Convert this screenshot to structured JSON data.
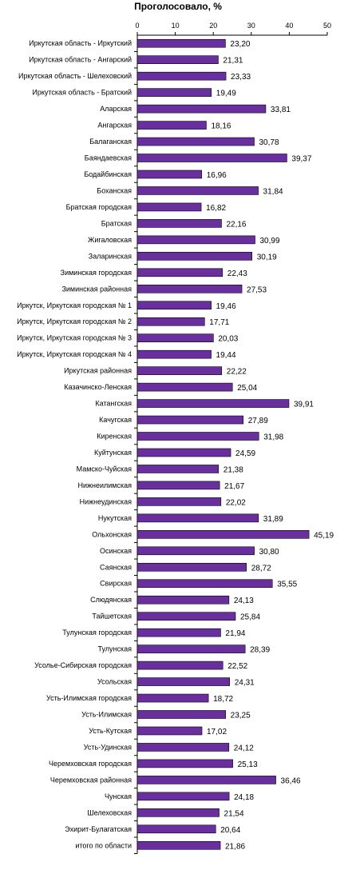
{
  "chart_data": {
    "type": "bar",
    "orientation": "horizontal",
    "title": "Проголосовало, %",
    "xlim": [
      0,
      50
    ],
    "x_ticks": [
      "0",
      "10",
      "20",
      "30",
      "40",
      "50"
    ],
    "grid": false,
    "bar_color": "#6a2f9e",
    "categories": [
      "Иркутская область - Иркутский",
      "Иркутская область - Ангарский",
      "Иркутская область - Шелеховский",
      "Иркутская область - Братский",
      "Аларская",
      "Ангарская",
      "Балаганская",
      "Баяндаевская",
      "Бодайбинская",
      "Боханская",
      "Братская городская",
      "Братская",
      "Жигаловская",
      "Заларинская",
      "Зиминская городская",
      "Зиминская районная",
      "Иркутск, Иркутская городская № 1",
      "Иркутск, Иркутская городская № 2",
      "Иркутск, Иркутская городская № 3",
      "Иркутск, Иркутская городская № 4",
      "Иркутская районная",
      "Казачинско-Ленская",
      "Катангская",
      "Качугская",
      "Киренская",
      "Куйтунская",
      "Мамско-Чуйская",
      "Нижнеилимская",
      "Нижнеудинская",
      "Нукутская",
      "Ольхонская",
      "Осинская",
      "Саянская",
      "Свирская",
      "Слюдянская",
      "Тайшетская",
      "Тулунская городская",
      "Тулунская",
      "Усолье-Сибирская городская",
      "Усольская",
      "Усть-Илимская городская",
      "Усть-Илимская",
      "Усть-Кутская",
      "Усть-Удинская",
      "Черемховская городская",
      "Черемховская районная",
      "Чунская",
      "Шелеховская",
      "Эхирит-Булагатская",
      "итого по области"
    ],
    "values": [
      23.2,
      21.31,
      23.33,
      19.49,
      33.81,
      18.16,
      30.78,
      39.37,
      16.96,
      31.84,
      16.82,
      22.16,
      30.99,
      30.19,
      22.43,
      27.53,
      19.46,
      17.71,
      20.03,
      19.44,
      22.22,
      25.04,
      39.91,
      27.89,
      31.98,
      24.59,
      21.38,
      21.67,
      22.02,
      31.89,
      45.19,
      30.8,
      28.72,
      35.55,
      24.13,
      25.84,
      21.94,
      28.39,
      22.52,
      24.31,
      18.72,
      23.25,
      17.02,
      24.12,
      25.13,
      36.46,
      24.18,
      21.54,
      20.64,
      21.86
    ],
    "value_labels": [
      "23,20",
      "21,31",
      "23,33",
      "19,49",
      "33,81",
      "18,16",
      "30,78",
      "39,37",
      "16,96",
      "31,84",
      "16,82",
      "22,16",
      "30,99",
      "30,19",
      "22,43",
      "27,53",
      "19,46",
      "17,71",
      "20,03",
      "19,44",
      "22,22",
      "25,04",
      "39,91",
      "27,89",
      "31,98",
      "24,59",
      "21,38",
      "21,67",
      "22,02",
      "31,89",
      "45,19",
      "30,80",
      "28,72",
      "35,55",
      "24,13",
      "25,84",
      "21,94",
      "28,39",
      "22,52",
      "24,31",
      "18,72",
      "23,25",
      "17,02",
      "24,12",
      "25,13",
      "36,46",
      "24,18",
      "21,54",
      "20,64",
      "21,86"
    ]
  }
}
